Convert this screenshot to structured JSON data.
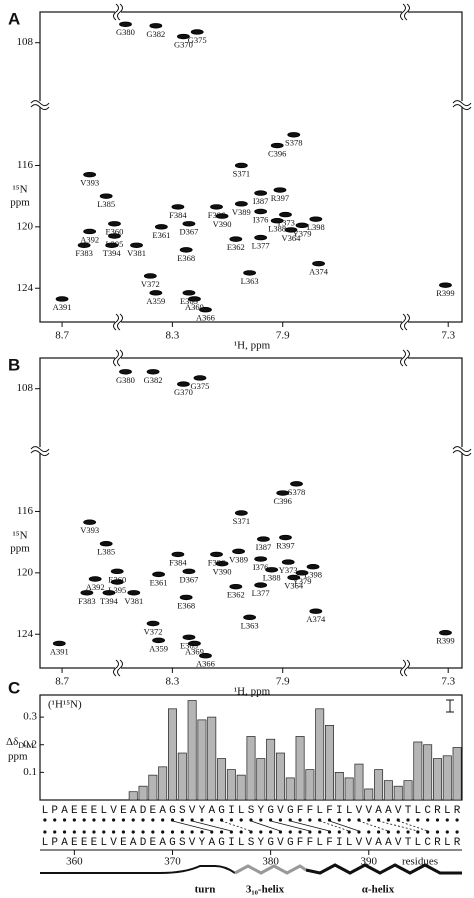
{
  "chart_data": [
    {
      "type": "scatter",
      "panel": "A",
      "xlabel": "¹H, ppm",
      "ylabel": "¹⁵N",
      "ylabel2": "ppm",
      "xlim": [
        8.78,
        7.25
      ],
      "ylim": [
        106,
        126.2
      ],
      "xticks": [
        8.7,
        8.3,
        7.9,
        7.3
      ],
      "yticks": [
        108,
        116,
        120,
        124
      ],
      "color": "#111",
      "labels": [
        "G380",
        "G382",
        "G370",
        "G375",
        "S378",
        "C396",
        "S371",
        "V393",
        "R397",
        "I387",
        "L385",
        "F384",
        "F386",
        "V389",
        "I376",
        "Y373",
        "L398",
        "V390",
        "E360",
        "E361",
        "D367",
        "L388",
        "V364",
        "Y379",
        "A392",
        "L395",
        "E362",
        "L377",
        "F383",
        "T394",
        "V381",
        "E368",
        "L363",
        "A374",
        "V372",
        "R399",
        "E365",
        "A359",
        "A391",
        "A369",
        "A366"
      ],
      "x": [
        8.47,
        8.36,
        8.26,
        8.21,
        7.86,
        7.92,
        8.05,
        8.6,
        7.91,
        7.98,
        8.54,
        8.28,
        8.14,
        8.05,
        7.98,
        7.89,
        7.78,
        8.12,
        8.51,
        8.34,
        8.24,
        7.92,
        7.87,
        7.83,
        8.6,
        8.51,
        8.07,
        7.98,
        8.62,
        8.52,
        8.43,
        8.25,
        8.02,
        7.77,
        8.38,
        7.31,
        8.24,
        8.36,
        8.7,
        8.22,
        8.18
      ],
      "y": [
        106.8,
        106.9,
        107.6,
        107.3,
        114.0,
        114.7,
        116.0,
        116.6,
        117.6,
        117.8,
        118.0,
        118.7,
        118.7,
        118.5,
        119.0,
        119.2,
        119.5,
        119.3,
        119.8,
        120.0,
        119.8,
        119.6,
        120.2,
        119.9,
        120.3,
        120.6,
        120.8,
        120.7,
        121.2,
        121.2,
        121.2,
        121.5,
        123.0,
        122.4,
        123.2,
        123.8,
        124.3,
        124.3,
        124.7,
        124.7,
        125.4
      ]
    },
    {
      "type": "scatter",
      "panel": "B",
      "xlabel": "¹H, ppm",
      "ylabel": "¹⁵N",
      "ylabel2": "ppm",
      "xlim": [
        8.78,
        7.25
      ],
      "ylim": [
        106,
        126.2
      ],
      "xticks": [
        8.7,
        8.3,
        7.9,
        7.3
      ],
      "yticks": [
        108,
        116,
        120,
        124
      ],
      "color": "#111",
      "labels": [
        "G380",
        "G382",
        "G370",
        "G375",
        "S378",
        "C396",
        "S371",
        "V393",
        "R397",
        "I387",
        "L385",
        "F384",
        "F386",
        "V389",
        "I376",
        "Y373",
        "L398",
        "V390",
        "E360",
        "E361",
        "D367",
        "L388",
        "V364",
        "Y379",
        "A392",
        "L395",
        "E362",
        "L377",
        "F383",
        "T394",
        "V381",
        "E368",
        "L363",
        "A374",
        "V372",
        "R399",
        "E365",
        "A359",
        "A391",
        "A369",
        "A366"
      ],
      "x": [
        8.47,
        8.37,
        8.26,
        8.2,
        7.85,
        7.9,
        8.05,
        8.6,
        7.89,
        7.97,
        8.54,
        8.28,
        8.14,
        8.06,
        7.98,
        7.88,
        7.79,
        8.12,
        8.5,
        8.35,
        8.24,
        7.94,
        7.86,
        7.83,
        8.58,
        8.5,
        8.07,
        7.98,
        8.61,
        8.53,
        8.44,
        8.25,
        8.02,
        7.78,
        8.37,
        7.31,
        8.24,
        8.35,
        8.71,
        8.22,
        8.18
      ],
      "y": [
        106.9,
        106.9,
        107.7,
        107.3,
        114.2,
        114.8,
        116.1,
        116.7,
        117.7,
        117.8,
        118.1,
        118.8,
        118.8,
        118.6,
        119.1,
        119.3,
        119.6,
        119.4,
        119.9,
        120.1,
        119.9,
        119.8,
        120.3,
        120.0,
        120.4,
        120.6,
        120.9,
        120.8,
        121.3,
        121.3,
        121.3,
        121.6,
        122.9,
        122.5,
        123.3,
        123.9,
        124.2,
        124.4,
        124.6,
        124.6,
        125.4
      ]
    },
    {
      "type": "bar",
      "panel": "C",
      "note_label": "(¹H¹⁵N)",
      "ylabel": "Δδ",
      "ylabel_sub": "D-M",
      "ylabel2": "ppm",
      "xlabel": "residues",
      "x": [
        357,
        358,
        359,
        360,
        361,
        362,
        363,
        364,
        365,
        366,
        367,
        368,
        369,
        370,
        371,
        372,
        373,
        374,
        375,
        376,
        377,
        378,
        379,
        380,
        381,
        382,
        383,
        384,
        385,
        386,
        387,
        388,
        389,
        390,
        391,
        392,
        393,
        394,
        395,
        396,
        397,
        398,
        399
      ],
      "sequence": [
        "L",
        "P",
        "A",
        "E",
        "E",
        "E",
        "L",
        "V",
        "E",
        "A",
        "D",
        "E",
        "A",
        "G",
        "S",
        "V",
        "Y",
        "A",
        "G",
        "I",
        "L",
        "S",
        "Y",
        "G",
        "V",
        "G",
        "F",
        "F",
        "L",
        "F",
        "I",
        "L",
        "V",
        "V",
        "A",
        "A",
        "V",
        "T",
        "L",
        "C",
        "R",
        "L",
        "R"
      ],
      "values": [
        null,
        null,
        null,
        null,
        null,
        null,
        null,
        null,
        null,
        0.03,
        0.05,
        0.09,
        0.12,
        0.33,
        0.17,
        0.36,
        0.29,
        0.3,
        0.15,
        0.11,
        0.09,
        0.23,
        0.15,
        0.22,
        0.17,
        0.08,
        0.23,
        0.11,
        0.33,
        0.27,
        0.1,
        0.08,
        0.13,
        0.04,
        0.11,
        0.07,
        0.05,
        0.07,
        0.21,
        0.2,
        0.15,
        0.16,
        0.19
      ],
      "color": "#b5b5b5",
      "xlim": [
        356.5,
        399.5
      ],
      "xticks": [
        360,
        370,
        380,
        390
      ],
      "ylim": [
        0,
        0.38
      ],
      "yticks": [
        0.1,
        0.2,
        0.3
      ],
      "structure": [
        "turn",
        "3₁₀-helix",
        "α-helix"
      ]
    }
  ]
}
